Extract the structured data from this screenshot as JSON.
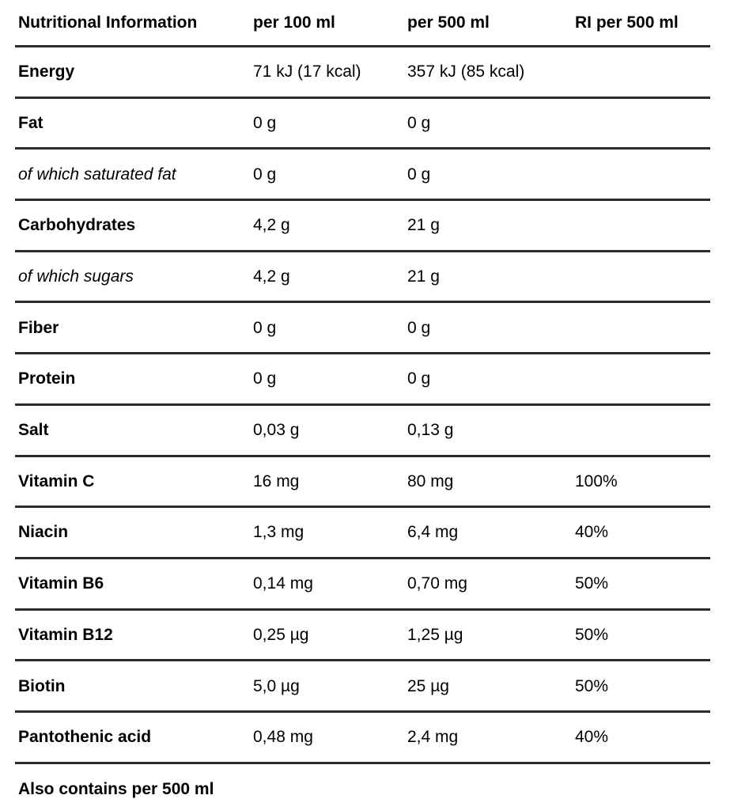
{
  "table": {
    "headers": {
      "name": "Nutritional Information",
      "per100": "per 100 ml",
      "per500": "per 500 ml",
      "ri": "RI per 500 ml"
    },
    "rows": [
      {
        "name": "Energy",
        "per100": "71 kJ (17 kcal)",
        "per500": "357 kJ (85 kcal)",
        "ri": ""
      },
      {
        "name": "Fat",
        "per100": "0 g",
        "per500": "0 g",
        "ri": ""
      },
      {
        "name": "of which saturated fat",
        "per100": "0 g",
        "per500": "0 g",
        "ri": ""
      },
      {
        "name": "Carbohydrates",
        "per100": "4,2 g",
        "per500": "21 g",
        "ri": ""
      },
      {
        "name": "of which sugars",
        "per100": "4,2 g",
        "per500": "21 g",
        "ri": ""
      },
      {
        "name": "Fiber",
        "per100": "0 g",
        "per500": "0 g",
        "ri": ""
      },
      {
        "name": "Protein",
        "per100": "0 g",
        "per500": "0 g",
        "ri": ""
      },
      {
        "name": "Salt",
        "per100": "0,03 g",
        "per500": "0,13 g",
        "ri": ""
      },
      {
        "name": "Vitamin C",
        "per100": "16 mg",
        "per500": "80 mg",
        "ri": "100%"
      },
      {
        "name": "Niacin",
        "per100": "1,3 mg",
        "per500": "6,4 mg",
        "ri": "40%"
      },
      {
        "name": "Vitamin B6",
        "per100": "0,14 mg",
        "per500": "0,70 mg",
        "ri": "50%"
      },
      {
        "name": "Vitamin B12",
        "per100": "0,25 µg",
        "per500": "1,25 µg",
        "ri": "50%"
      },
      {
        "name": "Biotin",
        "per100": "5,0 µg",
        "per500": "25 µg",
        "ri": "50%"
      },
      {
        "name": "Pantothenic acid",
        "per100": "0,48 mg",
        "per500": "2,4 mg",
        "ri": "40%"
      }
    ],
    "footer_note": "Also contains per 500 ml"
  },
  "colors": {
    "background": "#ffffff",
    "text": "#000000",
    "rule": "#2c2c2c"
  }
}
